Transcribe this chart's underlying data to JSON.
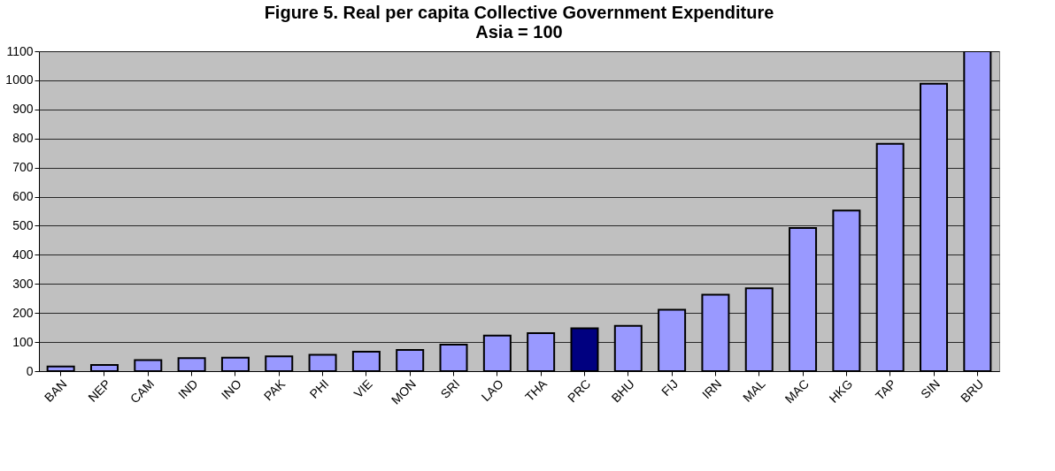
{
  "chart_data": {
    "type": "bar",
    "title": [
      "Figure 5. Real per capita Collective Government Expenditure",
      "Asia = 100"
    ],
    "categories": [
      "BAN",
      "NEP",
      "CAM",
      "IND",
      "INO",
      "PAK",
      "PHI",
      "VIE",
      "MON",
      "SRI",
      "LAO",
      "THA",
      "PRC",
      "BHU",
      "FIJ",
      "IRN",
      "MAL",
      "MAC",
      "HKG",
      "TAP",
      "SIN",
      "BRU"
    ],
    "values": [
      16,
      21,
      38,
      45,
      46,
      51,
      56,
      67,
      73,
      91,
      122,
      131,
      147,
      156,
      211,
      263,
      285,
      492,
      552,
      782,
      988,
      1100
    ],
    "colors": [
      "#9999ff",
      "#9999ff",
      "#9999ff",
      "#9999ff",
      "#9999ff",
      "#9999ff",
      "#9999ff",
      "#9999ff",
      "#9999ff",
      "#9999ff",
      "#9999ff",
      "#9999ff",
      "#000080",
      "#9999ff",
      "#9999ff",
      "#9999ff",
      "#9999ff",
      "#9999ff",
      "#9999ff",
      "#9999ff",
      "#9999ff",
      "#9999ff"
    ],
    "ylim": [
      0,
      1100
    ],
    "yticks": [
      0,
      100,
      200,
      300,
      400,
      500,
      600,
      700,
      800,
      900,
      1000,
      1100
    ],
    "grid": "y",
    "legend": false
  }
}
